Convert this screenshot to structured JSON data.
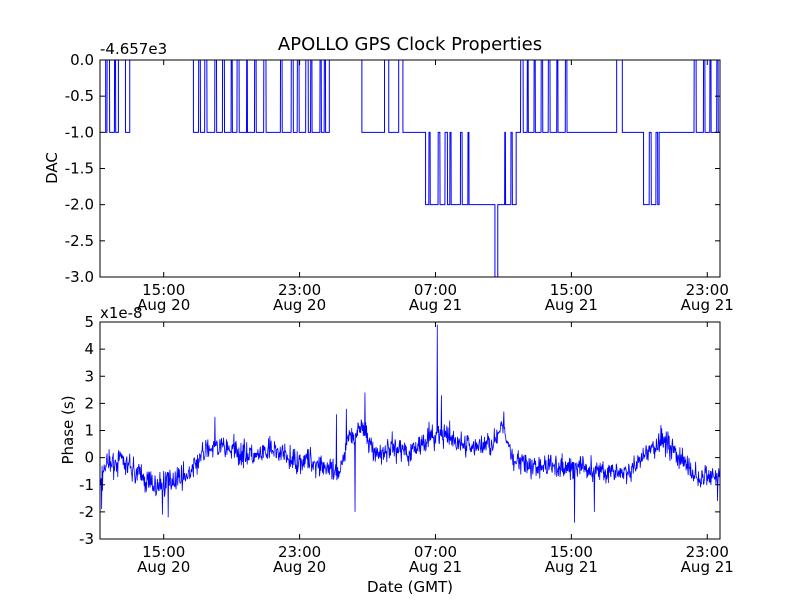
{
  "chart_data": [
    {
      "type": "line",
      "title": "APOLLO GPS Clock Properties",
      "xlabel": "",
      "ylabel": "DAC",
      "y_offset_label": "-4.657e3",
      "ylim": [
        -3.0,
        0.0
      ],
      "yticks": [
        "-3.0",
        "-2.5",
        "-2.0",
        "-1.5",
        "-1.0",
        "-0.5",
        "0.0"
      ],
      "xlim": [
        "Aug 20 11:15",
        "Aug 21 23:45"
      ],
      "xticks": [
        {
          "time": "15:00",
          "date": "Aug 20"
        },
        {
          "time": "23:00",
          "date": "Aug 20"
        },
        {
          "time": "07:00",
          "date": "Aug 21"
        },
        {
          "time": "15:00",
          "date": "Aug 21"
        },
        {
          "time": "23:00",
          "date": "Aug 21"
        }
      ],
      "color": "#0000ff",
      "segments": [
        {
          "start": "Aug 20 11:15",
          "end": "Aug 20 11:35",
          "level": 0.0,
          "toggle": false
        },
        {
          "start": "Aug 20 11:35",
          "end": "Aug 20 12:20",
          "level": -1.0,
          "toggle": true
        },
        {
          "start": "Aug 20 12:20",
          "end": "Aug 20 12:45",
          "level": 0.0,
          "toggle": false
        },
        {
          "start": "Aug 20 12:45",
          "end": "Aug 20 13:00",
          "level": -1.0,
          "toggle": false
        },
        {
          "start": "Aug 20 13:00",
          "end": "Aug 20 16:45",
          "level": 0.0,
          "toggle": false
        },
        {
          "start": "Aug 20 16:45",
          "end": "Aug 20 21:00",
          "level": -1.0,
          "toggle": true
        },
        {
          "start": "Aug 20 21:00",
          "end": "Aug 20 21:45",
          "level": -1.0,
          "toggle": false
        },
        {
          "start": "Aug 20 21:45",
          "end": "Aug 21 00:45",
          "level": -1.0,
          "toggle": true
        },
        {
          "start": "Aug 21 00:45",
          "end": "Aug 21 02:40",
          "level": 0.0,
          "toggle": false
        },
        {
          "start": "Aug 21 02:40",
          "end": "Aug 21 04:00",
          "level": -1.0,
          "toggle": false
        },
        {
          "start": "Aug 21 04:00",
          "end": "Aug 21 04:15",
          "level": 0.0,
          "toggle": false
        },
        {
          "start": "Aug 21 04:15",
          "end": "Aug 21 04:50",
          "level": -1.0,
          "toggle": false
        },
        {
          "start": "Aug 21 04:50",
          "end": "Aug 21 05:05",
          "level": 0.0,
          "toggle": false
        },
        {
          "start": "Aug 21 05:05",
          "end": "Aug 21 06:25",
          "level": -1.0,
          "toggle": false
        },
        {
          "start": "Aug 21 06:25",
          "end": "Aug 21 07:15",
          "level": -2.0,
          "toggle": true
        },
        {
          "start": "Aug 21 07:15",
          "end": "Aug 21 09:10",
          "level": -2.0,
          "toggle": true
        },
        {
          "start": "Aug 21 09:10",
          "end": "Aug 21 10:30",
          "level": -2.0,
          "toggle": false
        },
        {
          "start": "Aug 21 10:30",
          "end": "Aug 21 10:40",
          "level": -3.0,
          "toggle": false
        },
        {
          "start": "Aug 21 10:40",
          "end": "Aug 21 11:45",
          "level": -2.0,
          "toggle": true
        },
        {
          "start": "Aug 21 11:45",
          "end": "Aug 21 14:45",
          "level": -1.0,
          "toggle": true
        },
        {
          "start": "Aug 21 14:45",
          "end": "Aug 21 17:40",
          "level": -1.0,
          "toggle": false
        },
        {
          "start": "Aug 21 17:40",
          "end": "Aug 21 18:00",
          "level": 0.0,
          "toggle": false
        },
        {
          "start": "Aug 21 18:00",
          "end": "Aug 21 19:15",
          "level": -1.0,
          "toggle": false
        },
        {
          "start": "Aug 21 19:15",
          "end": "Aug 21 20:10",
          "level": -2.0,
          "toggle": true
        },
        {
          "start": "Aug 21 20:10",
          "end": "Aug 21 22:00",
          "level": -1.0,
          "toggle": false
        },
        {
          "start": "Aug 21 22:00",
          "end": "Aug 21 23:45",
          "level": -1.0,
          "toggle": true
        }
      ]
    },
    {
      "type": "line",
      "title": "",
      "xlabel": "Date (GMT)",
      "ylabel": "Phase (s)",
      "y_offset_label": "x1e-8",
      "ylim": [
        -3,
        5
      ],
      "yticks": [
        "-3",
        "-2",
        "-1",
        "0",
        "1",
        "2",
        "3",
        "4",
        "5"
      ],
      "xlim": [
        "Aug 20 11:15",
        "Aug 21 23:45"
      ],
      "xticks": [
        {
          "time": "15:00",
          "date": "Aug 20"
        },
        {
          "time": "23:00",
          "date": "Aug 20"
        },
        {
          "time": "07:00",
          "date": "Aug 21"
        },
        {
          "time": "15:00",
          "date": "Aug 21"
        },
        {
          "time": "23:00",
          "date": "Aug 21"
        }
      ],
      "color": "#0000ff",
      "trend": [
        {
          "t": "Aug 20 11:15",
          "v": -0.8
        },
        {
          "t": "Aug 20 11:35",
          "v": -0.3
        },
        {
          "t": "Aug 20 12:30",
          "v": -0.1
        },
        {
          "t": "Aug 20 13:30",
          "v": -0.6
        },
        {
          "t": "Aug 20 14:30",
          "v": -1.1
        },
        {
          "t": "Aug 20 15:30",
          "v": -0.8
        },
        {
          "t": "Aug 20 16:30",
          "v": -0.6
        },
        {
          "t": "Aug 20 17:30",
          "v": 0.3
        },
        {
          "t": "Aug 20 18:30",
          "v": 0.4
        },
        {
          "t": "Aug 20 19:30",
          "v": 0.2
        },
        {
          "t": "Aug 20 20:30",
          "v": 0.0
        },
        {
          "t": "Aug 20 21:30",
          "v": 0.3
        },
        {
          "t": "Aug 20 22:30",
          "v": -0.1
        },
        {
          "t": "Aug 20 23:30",
          "v": -0.1
        },
        {
          "t": "Aug 21 00:30",
          "v": -0.3
        },
        {
          "t": "Aug 21 01:20",
          "v": -0.8
        },
        {
          "t": "Aug 21 01:50",
          "v": 0.8
        },
        {
          "t": "Aug 21 02:40",
          "v": 1.1
        },
        {
          "t": "Aug 21 03:30",
          "v": 0.1
        },
        {
          "t": "Aug 21 04:30",
          "v": 0.4
        },
        {
          "t": "Aug 21 05:30",
          "v": 0.2
        },
        {
          "t": "Aug 21 06:30",
          "v": 0.7
        },
        {
          "t": "Aug 21 07:30",
          "v": 0.8
        },
        {
          "t": "Aug 21 08:30",
          "v": 0.5
        },
        {
          "t": "Aug 21 09:30",
          "v": 0.4
        },
        {
          "t": "Aug 21 10:30",
          "v": 0.6
        },
        {
          "t": "Aug 21 11:00",
          "v": 1.1
        },
        {
          "t": "Aug 21 11:30",
          "v": 0.1
        },
        {
          "t": "Aug 21 12:30",
          "v": -0.4
        },
        {
          "t": "Aug 21 13:30",
          "v": -0.3
        },
        {
          "t": "Aug 21 14:30",
          "v": -0.4
        },
        {
          "t": "Aug 21 15:30",
          "v": -0.3
        },
        {
          "t": "Aug 21 16:30",
          "v": -0.5
        },
        {
          "t": "Aug 21 17:30",
          "v": -0.5
        },
        {
          "t": "Aug 21 18:30",
          "v": -0.6
        },
        {
          "t": "Aug 21 19:30",
          "v": 0.2
        },
        {
          "t": "Aug 21 20:30",
          "v": 0.7
        },
        {
          "t": "Aug 21 21:30",
          "v": -0.1
        },
        {
          "t": "Aug 21 22:30",
          "v": -0.8
        },
        {
          "t": "Aug 21 23:45",
          "v": -0.6
        }
      ],
      "spikes": [
        {
          "t": "Aug 20 11:20",
          "v": -1.9
        },
        {
          "t": "Aug 20 14:55",
          "v": -2.1
        },
        {
          "t": "Aug 20 15:15",
          "v": -2.2
        },
        {
          "t": "Aug 20 18:00",
          "v": 1.5
        },
        {
          "t": "Aug 21 01:10",
          "v": 1.6
        },
        {
          "t": "Aug 21 01:45",
          "v": 1.8
        },
        {
          "t": "Aug 21 02:15",
          "v": -2.0
        },
        {
          "t": "Aug 21 02:50",
          "v": 2.4
        },
        {
          "t": "Aug 21 07:05",
          "v": 4.9
        },
        {
          "t": "Aug 21 07:20",
          "v": 2.3
        },
        {
          "t": "Aug 21 11:00",
          "v": 1.7
        },
        {
          "t": "Aug 21 15:10",
          "v": -2.4
        },
        {
          "t": "Aug 21 16:20",
          "v": -2.0
        },
        {
          "t": "Aug 21 20:15",
          "v": 1.2
        },
        {
          "t": "Aug 21 23:35",
          "v": -1.6
        }
      ]
    }
  ]
}
